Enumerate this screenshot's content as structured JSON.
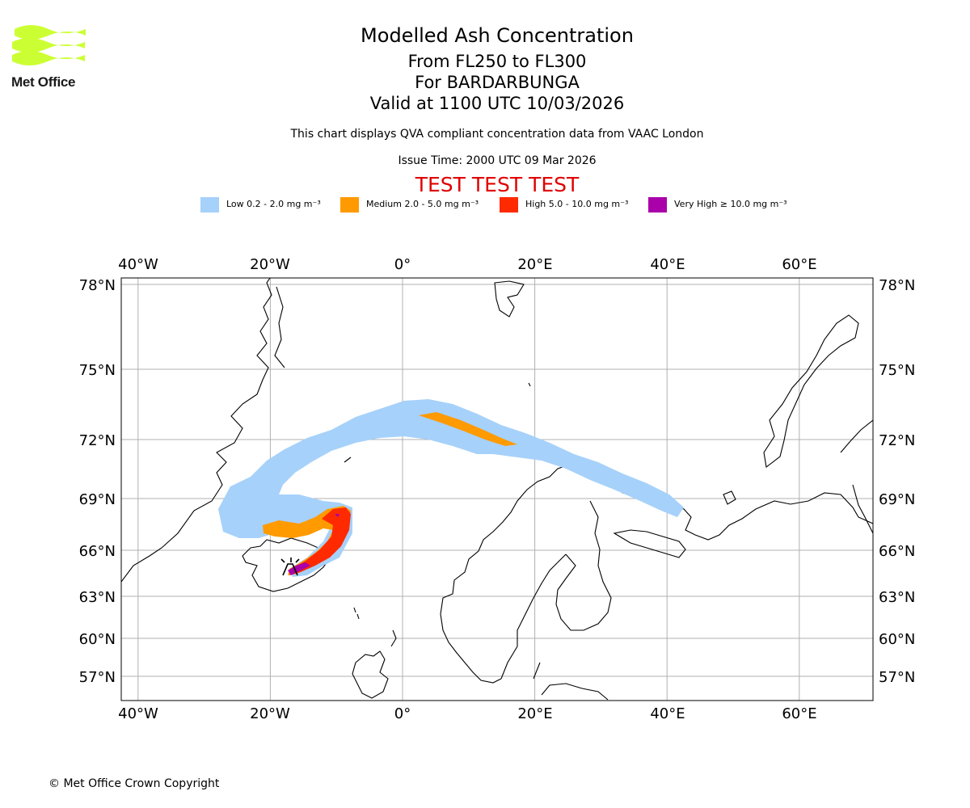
{
  "logo": {
    "text": "Met Office",
    "color": "#ccff33"
  },
  "title": {
    "main": "Modelled Ash Concentration",
    "levels": "From FL250 to FL300",
    "volcano": "For BARDARBUNGA",
    "valid": "Valid at 1100 UTC 10/03/2026"
  },
  "subtitle": "This chart displays QVA compliant concentration data from VAAC London",
  "issue_time": "Issue Time: 2000 UTC 09 Mar 2026",
  "test_banner": "TEST TEST TEST",
  "legend": [
    {
      "label": "Low 0.2 - 2.0 mg m⁻³",
      "color": "#a6d1fa"
    },
    {
      "label": "Medium 2.0 - 5.0 mg m⁻³",
      "color": "#ff9a00"
    },
    {
      "label": "High 5.0 - 10.0 mg m⁻³",
      "color": "#ff2a00"
    },
    {
      "label": "Very High ≥ 10.0 mg m⁻³",
      "color": "#aa00aa"
    }
  ],
  "map": {
    "lon_ticks": [
      "40°W",
      "20°W",
      "0°",
      "20°E",
      "40°E",
      "60°E"
    ],
    "lat_ticks": [
      "78°N",
      "75°N",
      "72°N",
      "69°N",
      "66°N",
      "63°N",
      "60°N",
      "57°N"
    ],
    "lon_values": [
      -40,
      -20,
      0,
      20,
      40,
      60
    ],
    "lat_values": [
      78,
      75,
      72,
      69,
      66,
      63,
      60,
      57
    ]
  },
  "copyright": "© Met Office Crown Copyright"
}
